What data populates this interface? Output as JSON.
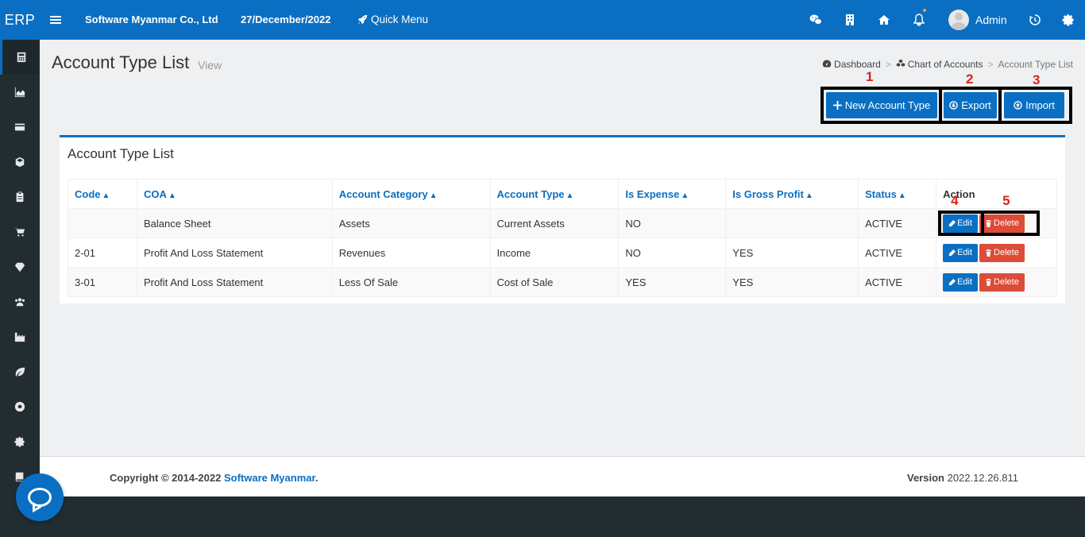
{
  "topbar": {
    "logo": "ERP",
    "company": "Software Myanmar Co., Ltd",
    "date": "27/December/2022",
    "quick_menu": "Quick Menu",
    "user": "Admin",
    "icons": [
      "wechat-icon",
      "building-icon",
      "home-icon",
      "bell-icon",
      "history-icon",
      "gear-icon"
    ]
  },
  "sidebar": {
    "items": [
      "calculator-icon",
      "area-chart-icon",
      "credit-card-icon",
      "cube-icon",
      "clipboard-icon",
      "cart-icon",
      "diamond-icon",
      "users-icon",
      "industry-icon",
      "leaf-icon",
      "soccer-icon",
      "settings-icon",
      "book-icon",
      "chat-icon"
    ]
  },
  "page": {
    "title": "Account Type List",
    "subtitle": "View"
  },
  "breadcrumb": {
    "items": [
      "Dashboard",
      "Chart of Accounts",
      "Account Type List"
    ],
    "separator": ">"
  },
  "actions": {
    "new_label": "New Account Type",
    "export_label": "Export",
    "import_label": "Import"
  },
  "markers": [
    "1",
    "2",
    "3",
    "4",
    "5"
  ],
  "panel": {
    "title": "Account Type List"
  },
  "table": {
    "headers": [
      "Code",
      "COA",
      "Account Category",
      "Account Type",
      "Is Expense",
      "Is Gross Profit",
      "Status",
      "Action"
    ],
    "rows": [
      {
        "code": "",
        "coa": "Balance Sheet",
        "category": "Assets",
        "type": "Current Assets",
        "expense": "NO",
        "gross": "",
        "status": "ACTIVE"
      },
      {
        "code": "2-01",
        "coa": "Profit And Loss Statement",
        "category": "Revenues",
        "type": "Income",
        "expense": "NO",
        "gross": "YES",
        "status": "ACTIVE"
      },
      {
        "code": "3-01",
        "coa": "Profit And Loss Statement",
        "category": "Less Of Sale",
        "type": "Cost of Sale",
        "expense": "YES",
        "gross": "YES",
        "status": "ACTIVE"
      }
    ],
    "edit_label": "Edit",
    "delete_label": "Delete"
  },
  "footer": {
    "copyright_prefix": "Copyright © 2014-2022 ",
    "brand": "Software Myanmar",
    "suffix": ".",
    "version_label": "Version",
    "version": "2022.12.26.811"
  },
  "colors": {
    "primary": "#0a6fc2",
    "sidebar": "#222d32",
    "danger": "#dd4b39",
    "marker": "#d9231c"
  }
}
